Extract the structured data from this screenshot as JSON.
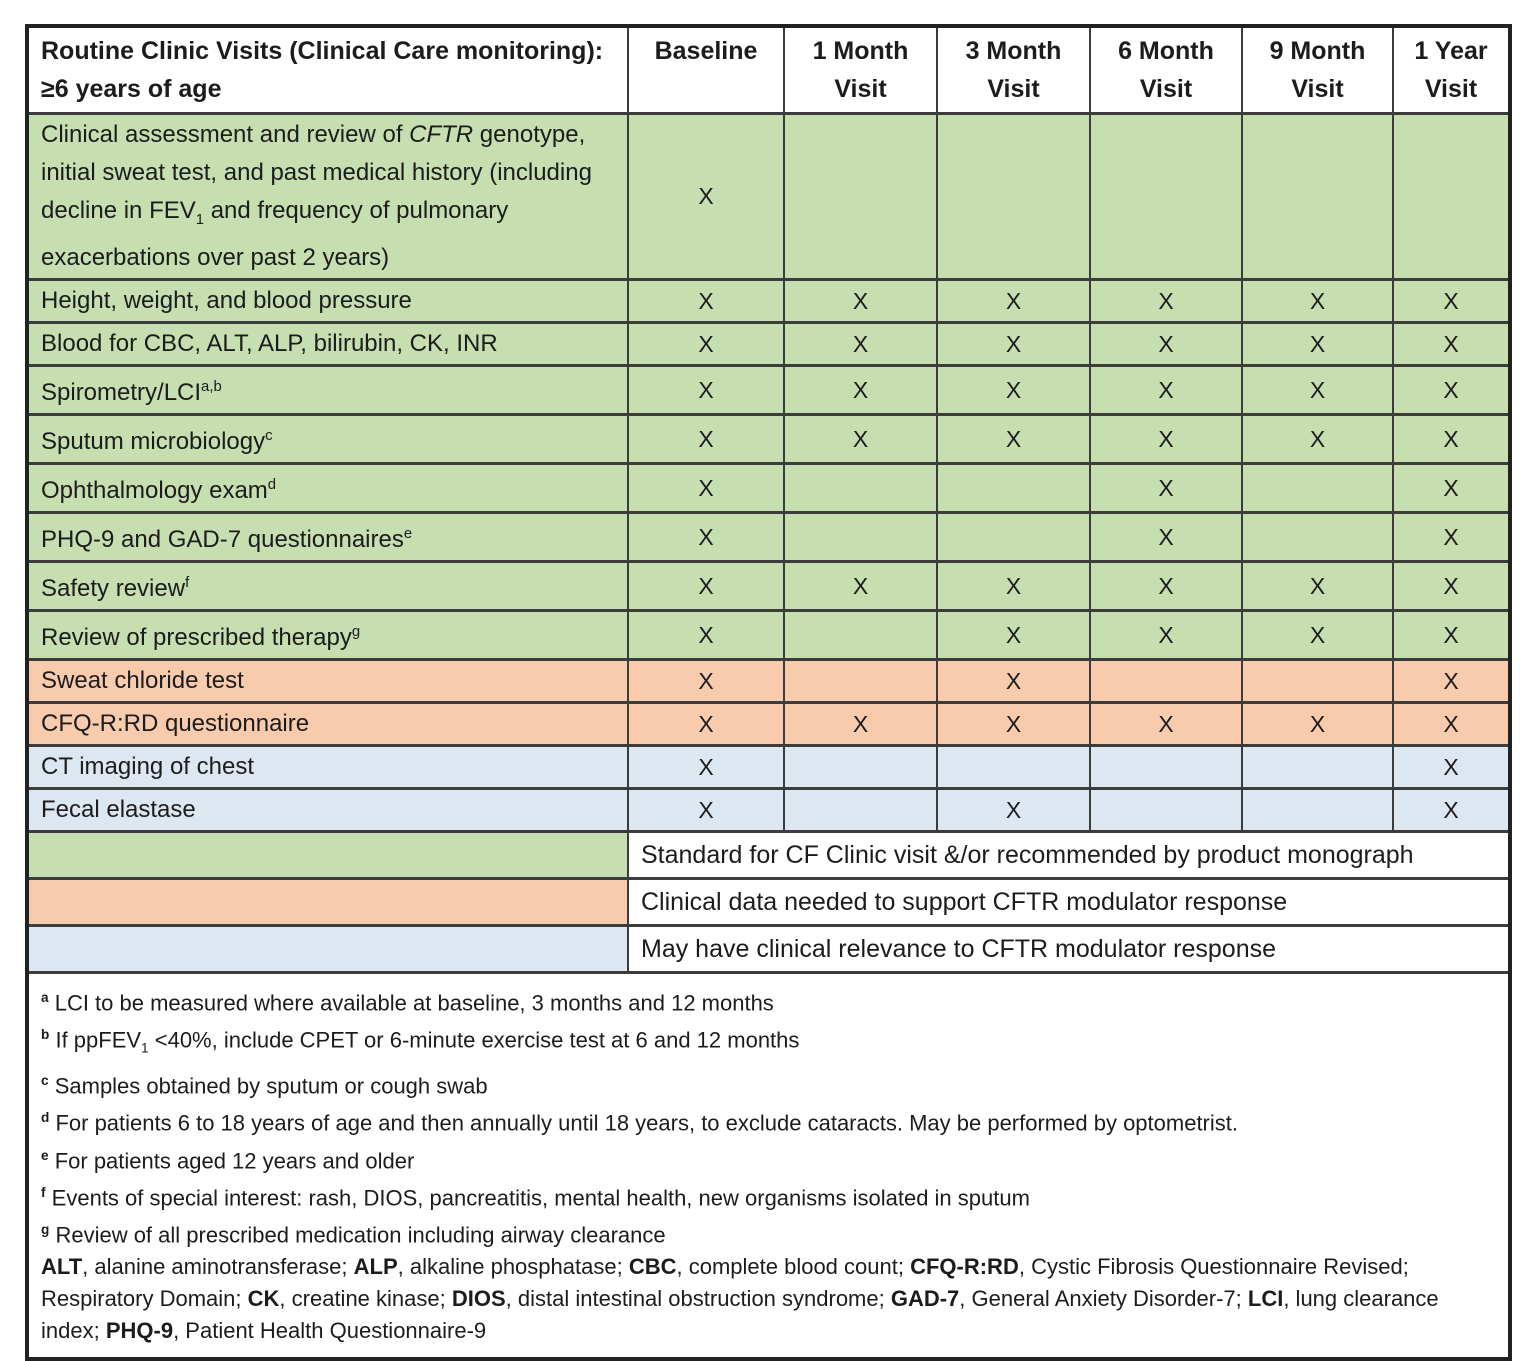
{
  "table": {
    "corner_title": "Routine Clinic Visits (Clinical Care monitoring): ≥6 years of age",
    "visit_columns": [
      "Baseline",
      "1 Month Visit",
      "3 Month Visit",
      "6 Month Visit",
      "9 Month Visit",
      "1 Year Visit"
    ],
    "mark_symbol": "X",
    "colors": {
      "standard": "#c6deb0",
      "support": "#f9cbad",
      "relevance": "#dde7f2",
      "border": "#3c3c3c",
      "header_bg": "#ffffff"
    },
    "rows": [
      {
        "category": "standard",
        "label": [
          {
            "t": "Clinical assessment and review of "
          },
          {
            "t": "CFTR",
            "i": true
          },
          {
            "t": " genotype, initial sweat test, and past medical history (including decline in FEV"
          },
          {
            "t": "1",
            "sub": true
          },
          {
            "t": " and frequency of pulmonary exacerbations over past 2 years)"
          }
        ],
        "visits": [
          "X",
          "",
          "",
          "",
          "",
          ""
        ]
      },
      {
        "category": "standard",
        "label": [
          {
            "t": "Height, weight, and blood pressure"
          }
        ],
        "visits": [
          "X",
          "X",
          "X",
          "X",
          "X",
          "X"
        ]
      },
      {
        "category": "standard",
        "label": [
          {
            "t": "Blood for CBC, ALT, ALP, bilirubin, CK, INR"
          }
        ],
        "visits": [
          "X",
          "X",
          "X",
          "X",
          "X",
          "X"
        ]
      },
      {
        "category": "standard",
        "label": [
          {
            "t": "Spirometry/LCI"
          },
          {
            "t": "a,b",
            "sup": true
          }
        ],
        "visits": [
          "X",
          "X",
          "X",
          "X",
          "X",
          "X"
        ]
      },
      {
        "category": "standard",
        "label": [
          {
            "t": "Sputum microbiology"
          },
          {
            "t": "c",
            "sup": true
          }
        ],
        "visits": [
          "X",
          "X",
          "X",
          "X",
          "X",
          "X"
        ]
      },
      {
        "category": "standard",
        "label": [
          {
            "t": "Ophthalmology exam"
          },
          {
            "t": "d",
            "sup": true
          }
        ],
        "visits": [
          "X",
          "",
          "",
          "X",
          "",
          "X"
        ]
      },
      {
        "category": "standard",
        "label": [
          {
            "t": "PHQ-9 and GAD-7 questionnaires"
          },
          {
            "t": "e",
            "sup": true
          }
        ],
        "visits": [
          "X",
          "",
          "",
          "X",
          "",
          "X"
        ]
      },
      {
        "category": "standard",
        "label": [
          {
            "t": "Safety review"
          },
          {
            "t": "f",
            "sup": true
          }
        ],
        "visits": [
          "X",
          "X",
          "X",
          "X",
          "X",
          "X"
        ]
      },
      {
        "category": "standard",
        "label": [
          {
            "t": "Review of prescribed therapy"
          },
          {
            "t": "g",
            "sup": true
          }
        ],
        "visits": [
          "X",
          "",
          "X",
          "X",
          "X",
          "X"
        ]
      },
      {
        "category": "support",
        "label": [
          {
            "t": "Sweat chloride test"
          }
        ],
        "visits": [
          "X",
          "",
          "X",
          "",
          "",
          "X"
        ]
      },
      {
        "category": "support",
        "label": [
          {
            "t": "CFQ-R:RD questionnaire"
          }
        ],
        "visits": [
          "X",
          "X",
          "X",
          "X",
          "X",
          "X"
        ]
      },
      {
        "category": "relevance",
        "label": [
          {
            "t": "CT imaging of chest"
          }
        ],
        "visits": [
          "X",
          "",
          "",
          "",
          "",
          "X"
        ]
      },
      {
        "category": "relevance",
        "label": [
          {
            "t": "Fecal elastase"
          }
        ],
        "visits": [
          "X",
          "",
          "X",
          "",
          "",
          "X"
        ]
      }
    ],
    "legend": [
      {
        "category": "standard",
        "text": "Standard for CF Clinic visit &/or recommended by product monograph"
      },
      {
        "category": "support",
        "text": "Clinical data needed to support CFTR modulator response"
      },
      {
        "category": "relevance",
        "text": "May have clinical relevance to CFTR modulator response"
      }
    ],
    "footnotes": [
      {
        "sup": "a",
        "segments": [
          {
            "t": "LCI to be measured where available at baseline, 3 months and 12 months"
          }
        ]
      },
      {
        "sup": "b",
        "segments": [
          {
            "t": "If ppFEV"
          },
          {
            "t": "1",
            "sub": true
          },
          {
            "t": " <40%, include CPET or 6-minute exercise test at 6 and 12 months"
          }
        ]
      },
      {
        "sup": "c",
        "segments": [
          {
            "t": "Samples obtained by sputum or cough swab"
          }
        ]
      },
      {
        "sup": "d",
        "segments": [
          {
            "t": "For patients 6 to 18 years of age and then annually until 18 years, to exclude cataracts. May be performed by optometrist."
          }
        ]
      },
      {
        "sup": "e",
        "segments": [
          {
            "t": "For patients aged 12 years and older"
          }
        ]
      },
      {
        "sup": "f",
        "segments": [
          {
            "t": "Events of special interest: rash, DIOS, pancreatitis, mental health, new organisms isolated in sputum"
          }
        ]
      },
      {
        "sup": "g",
        "segments": [
          {
            "t": "Review of all prescribed medication including airway clearance"
          }
        ]
      },
      {
        "segments": [
          {
            "t": "ALT",
            "b": true
          },
          {
            "t": ", alanine aminotransferase; "
          },
          {
            "t": "ALP",
            "b": true
          },
          {
            "t": ", alkaline phosphatase; "
          },
          {
            "t": "CBC",
            "b": true
          },
          {
            "t": ", complete blood count; "
          },
          {
            "t": "CFQ-R:RD",
            "b": true
          },
          {
            "t": ", Cystic Fibrosis Questionnaire Revised; Respiratory Domain; "
          },
          {
            "t": "CK",
            "b": true
          },
          {
            "t": ", creatine kinase; "
          },
          {
            "t": "DIOS",
            "b": true
          },
          {
            "t": ", distal intestinal obstruction syndrome; "
          },
          {
            "t": "GAD-7",
            "b": true
          },
          {
            "t": ", General Anxiety Disorder-7; "
          },
          {
            "t": "LCI",
            "b": true
          },
          {
            "t": ", lung clearance index; "
          },
          {
            "t": "PHQ-9",
            "b": true
          },
          {
            "t": ", Patient Health Questionnaire-9"
          }
        ]
      }
    ]
  }
}
